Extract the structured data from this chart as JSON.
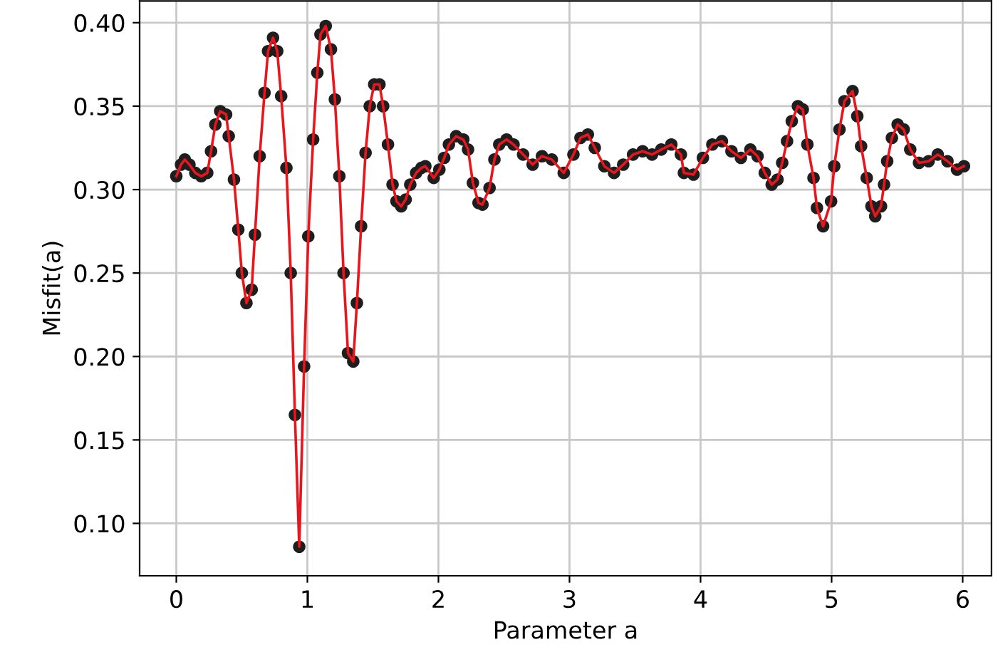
{
  "chart_data": {
    "type": "scatter",
    "xlabel": "Parameter a",
    "ylabel": "Misfit(a)",
    "x": [
      0,
      0.036,
      0.065,
      0.1,
      0.145,
      0.19,
      0.236,
      0.265,
      0.298,
      0.335,
      0.38,
      0.4,
      0.44,
      0.473,
      0.5,
      0.535,
      0.575,
      0.6,
      0.636,
      0.673,
      0.7,
      0.738,
      0.77,
      0.8,
      0.84,
      0.873,
      0.905,
      0.938,
      0.975,
      1.007,
      1.044,
      1.076,
      1.1,
      1.14,
      1.18,
      1.21,
      1.244,
      1.276,
      1.31,
      1.35,
      1.378,
      1.41,
      1.444,
      1.476,
      1.51,
      1.55,
      1.578,
      1.615,
      1.65,
      1.68,
      1.716,
      1.75,
      1.785,
      1.83,
      1.87,
      1.9,
      1.964,
      2.007,
      2.044,
      2.08,
      2.135,
      2.19,
      2.226,
      2.263,
      2.306,
      2.336,
      2.39,
      2.427,
      2.464,
      2.52,
      2.573,
      2.646,
      2.719,
      2.79,
      2.865,
      2.956,
      3.03,
      3.084,
      3.14,
      3.193,
      3.266,
      3.34,
      3.41,
      3.485,
      3.558,
      3.63,
      3.7,
      3.777,
      3.85,
      3.873,
      3.946,
      4.018,
      4.09,
      4.163,
      4.236,
      4.308,
      4.38,
      4.435,
      4.49,
      4.543,
      4.587,
      4.623,
      4.66,
      4.696,
      4.743,
      4.78,
      4.815,
      4.862,
      4.888,
      4.935,
      4.996,
      5.02,
      5.06,
      5.098,
      5.16,
      5.196,
      5.225,
      5.268,
      5.304,
      5.333,
      5.377,
      5.4,
      5.424,
      5.46,
      5.504,
      5.55,
      5.6,
      5.667,
      5.74,
      5.81,
      5.884,
      5.957,
      6.01
    ],
    "series": [
      {
        "marker": "circle",
        "color": "#1e1e1e",
        "values": [
          0.308,
          0.315,
          0.318,
          0.315,
          0.31,
          0.308,
          0.31,
          0.323,
          0.339,
          0.347,
          0.345,
          0.332,
          0.306,
          0.276,
          0.25,
          0.232,
          0.24,
          0.273,
          0.32,
          0.358,
          0.383,
          0.391,
          0.383,
          0.356,
          0.313,
          0.25,
          0.165,
          0.086,
          0.194,
          0.272,
          0.33,
          0.37,
          0.393,
          0.398,
          0.384,
          0.354,
          0.308,
          0.25,
          0.202,
          0.197,
          0.232,
          0.278,
          0.322,
          0.35,
          0.363,
          0.363,
          0.35,
          0.327,
          0.303,
          0.293,
          0.29,
          0.294,
          0.303,
          0.31,
          0.313,
          0.314,
          0.307,
          0.312,
          0.319,
          0.327,
          0.332,
          0.33,
          0.324,
          0.304,
          0.292,
          0.291,
          0.301,
          0.318,
          0.327,
          0.33,
          0.327,
          0.321,
          0.315,
          0.32,
          0.318,
          0.31,
          0.321,
          0.331,
          0.333,
          0.325,
          0.314,
          0.31,
          0.315,
          0.321,
          0.323,
          0.321,
          0.324,
          0.327,
          0.321,
          0.31,
          0.309,
          0.319,
          0.327,
          0.329,
          0.323,
          0.319,
          0.324,
          0.32,
          0.31,
          0.303,
          0.306,
          0.316,
          0.329,
          0.341,
          0.35,
          0.348,
          0.327,
          0.307,
          0.289,
          0.278,
          0.293,
          0.314,
          0.336,
          0.353,
          0.359,
          0.344,
          0.326,
          0.307,
          0.29,
          0.284,
          0.29,
          0.303,
          0.317,
          0.331,
          0.339,
          0.336,
          0.324,
          0.316,
          0.317,
          0.321,
          0.317,
          0.312,
          0.314
        ]
      },
      {
        "type": "line",
        "marker": "none",
        "color": "#e8161c",
        "values": [
          0.308,
          0.315,
          0.318,
          0.315,
          0.31,
          0.308,
          0.31,
          0.323,
          0.339,
          0.347,
          0.345,
          0.332,
          0.306,
          0.276,
          0.25,
          0.232,
          0.24,
          0.273,
          0.32,
          0.358,
          0.383,
          0.391,
          0.383,
          0.356,
          0.313,
          0.25,
          0.165,
          0.086,
          0.194,
          0.272,
          0.33,
          0.37,
          0.393,
          0.398,
          0.384,
          0.354,
          0.308,
          0.25,
          0.202,
          0.197,
          0.232,
          0.278,
          0.322,
          0.35,
          0.363,
          0.363,
          0.35,
          0.327,
          0.303,
          0.293,
          0.29,
          0.294,
          0.303,
          0.31,
          0.313,
          0.314,
          0.307,
          0.312,
          0.319,
          0.327,
          0.332,
          0.33,
          0.324,
          0.304,
          0.292,
          0.291,
          0.301,
          0.318,
          0.327,
          0.33,
          0.327,
          0.321,
          0.315,
          0.32,
          0.318,
          0.31,
          0.321,
          0.331,
          0.333,
          0.325,
          0.314,
          0.31,
          0.315,
          0.321,
          0.323,
          0.321,
          0.324,
          0.327,
          0.321,
          0.31,
          0.309,
          0.319,
          0.327,
          0.329,
          0.323,
          0.319,
          0.324,
          0.32,
          0.31,
          0.303,
          0.306,
          0.316,
          0.329,
          0.341,
          0.35,
          0.348,
          0.327,
          0.307,
          0.289,
          0.278,
          0.293,
          0.314,
          0.336,
          0.353,
          0.359,
          0.344,
          0.326,
          0.307,
          0.29,
          0.284,
          0.29,
          0.303,
          0.317,
          0.331,
          0.339,
          0.336,
          0.324,
          0.316,
          0.317,
          0.321,
          0.317,
          0.312,
          0.314
        ]
      }
    ],
    "xlim": [
      -0.28,
      6.22
    ],
    "xticks": [
      0,
      1,
      2,
      3,
      4,
      5,
      6
    ],
    "ylim": [
      0.0686,
      0.413
    ],
    "yticks": [
      {
        "value": 0.1,
        "label": "0.10"
      },
      {
        "value": 0.15,
        "label": "0.15"
      },
      {
        "value": 0.2,
        "label": "0.20"
      },
      {
        "value": 0.25,
        "label": "0.25"
      },
      {
        "value": 0.3,
        "label": "0.30"
      },
      {
        "value": 0.35,
        "label": "0.35"
      },
      {
        "value": 0.4,
        "label": "0.40"
      }
    ],
    "grid": true,
    "line_style": "solid"
  }
}
